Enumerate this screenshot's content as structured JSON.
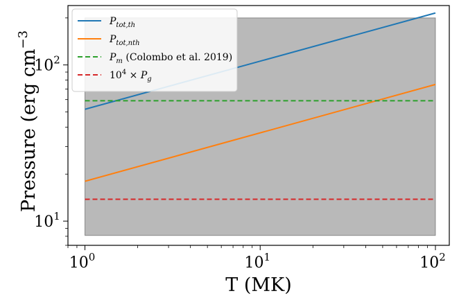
{
  "chart_data": {
    "type": "line",
    "xscale": "log",
    "yscale": "log",
    "xlim": [
      0.8,
      120
    ],
    "ylim": [
      7.0,
      240
    ],
    "xlabel": "T (MK)",
    "ylabel": "Pressure (erg cm",
    "ylabel_exp": "−3",
    "xticks": [
      {
        "value": 1,
        "base": "10",
        "exp": "0"
      },
      {
        "value": 10,
        "base": "10",
        "exp": "1"
      },
      {
        "value": 100,
        "base": "10",
        "exp": "2"
      }
    ],
    "yticks": [
      {
        "value": 10,
        "base": "10",
        "exp": "1"
      },
      {
        "value": 100,
        "base": "10",
        "exp": "2"
      }
    ],
    "shaded_region": {
      "x": [
        1,
        100
      ],
      "y": [
        8.1,
        200
      ],
      "color": "#808080",
      "opacity": 0.55
    },
    "series": [
      {
        "name_base": "P",
        "name_sub": "tot,th",
        "name_tail": "",
        "color": "#1f77b4",
        "dash": "solid",
        "x": [
          1,
          100
        ],
        "y": [
          52,
          215
        ]
      },
      {
        "name_base": "P",
        "name_sub": "tot,nth",
        "name_tail": "",
        "color": "#ff7f0e",
        "dash": "solid",
        "x": [
          1,
          100
        ],
        "y": [
          18,
          75
        ]
      },
      {
        "name_base": "P",
        "name_sub": "m",
        "name_tail": " (Colombo et al. 2019)",
        "color": "#2ca02c",
        "dash": "dashed",
        "x": [
          1,
          100
        ],
        "y": [
          59,
          59
        ]
      },
      {
        "name_pre": "10",
        "name_pre_exp": "4",
        "name_mid": " × ",
        "name_base": "P",
        "name_sub": "g",
        "name_tail": "",
        "color": "#d62728",
        "dash": "dashed",
        "x": [
          1,
          100
        ],
        "y": [
          13.8,
          13.8
        ]
      }
    ],
    "legend_position": "upper-left",
    "grid": false
  }
}
